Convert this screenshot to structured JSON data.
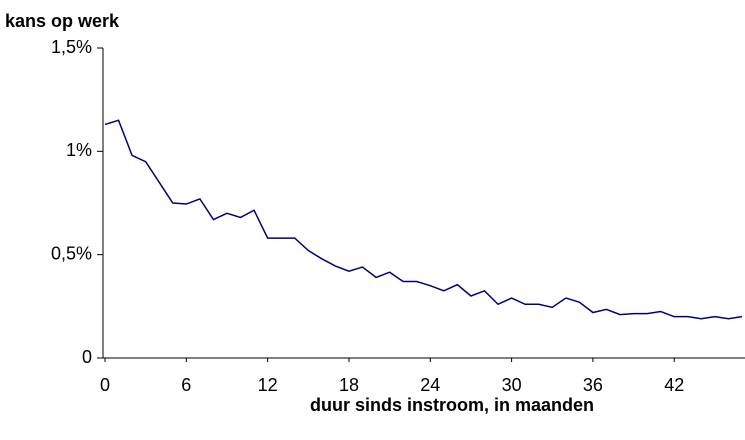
{
  "chart_data": {
    "type": "line",
    "title": "kans op werk",
    "x_label": "duur sinds instroom, in maanden",
    "x": [
      0,
      1,
      2,
      3,
      4,
      5,
      6,
      7,
      8,
      9,
      10,
      11,
      12,
      13,
      14,
      15,
      16,
      17,
      18,
      19,
      20,
      21,
      22,
      23,
      24,
      25,
      26,
      27,
      28,
      29,
      30,
      31,
      32,
      33,
      34,
      35,
      36,
      37,
      38,
      39,
      40,
      41,
      42,
      43,
      44,
      45,
      46,
      47
    ],
    "series": [
      {
        "color": "#000080",
        "values": [
          1.13,
          1.15,
          0.98,
          0.95,
          0.85,
          0.75,
          0.745,
          0.77,
          0.67,
          0.7,
          0.68,
          0.715,
          0.58,
          0.58,
          0.58,
          0.52,
          0.48,
          0.445,
          0.42,
          0.44,
          0.39,
          0.415,
          0.37,
          0.37,
          0.35,
          0.325,
          0.355,
          0.3,
          0.325,
          0.26,
          0.29,
          0.26,
          0.26,
          0.245,
          0.29,
          0.27,
          0.22,
          0.235,
          0.21,
          0.215,
          0.215,
          0.225,
          0.2,
          0.2,
          0.19,
          0.2,
          0.19,
          0.2
        ]
      }
    ],
    "xlim": [
      0,
      47
    ],
    "xticks": [
      0,
      6,
      12,
      18,
      24,
      30,
      36,
      42
    ],
    "ylim": [
      0,
      1.5
    ],
    "yticks": [
      0,
      {
        "value": 0.5,
        "label": "0,5%"
      },
      {
        "value": 1,
        "label": "1%"
      },
      {
        "value": 1.5,
        "label": "1,5%"
      }
    ]
  }
}
